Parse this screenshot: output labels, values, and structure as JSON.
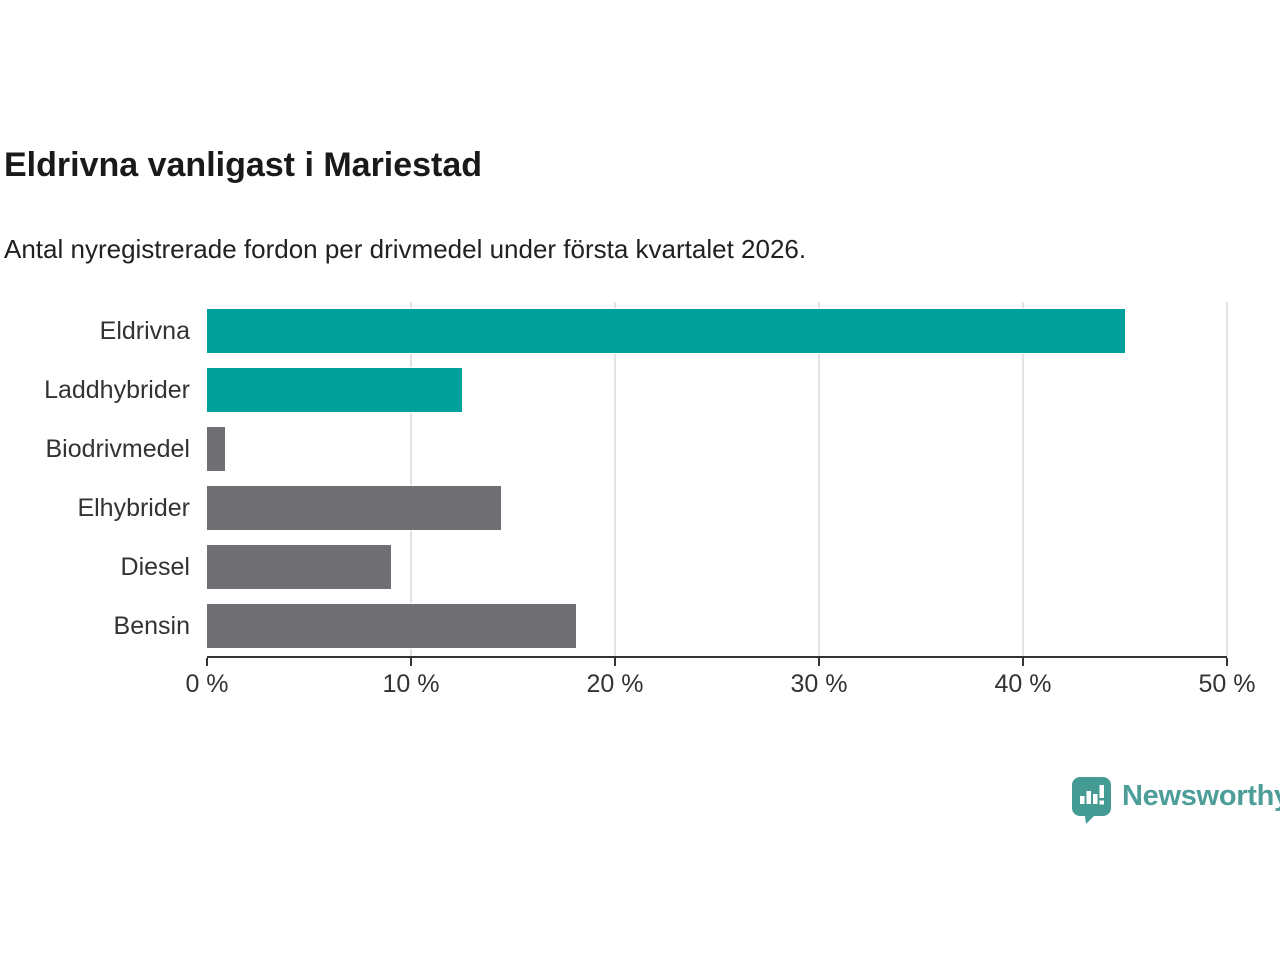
{
  "header": {
    "title": "Eldrivna vanligast i Mariestad",
    "subtitle": "Antal nyregistrerade fordon per drivmedel under första kvartalet 2026."
  },
  "chart_data": {
    "type": "bar",
    "orientation": "horizontal",
    "title": "Eldrivna vanligast i Mariestad",
    "subtitle": "Antal nyregistrerade fordon per drivmedel under första kvartalet 2026.",
    "categories": [
      "Eldrivna",
      "Laddhybrider",
      "Biodrivmedel",
      "Elhybrider",
      "Diesel",
      "Bensin"
    ],
    "values": [
      45.0,
      12.5,
      0.9,
      14.4,
      9.0,
      18.1
    ],
    "unit": "%",
    "bar_colors": [
      "#00A09B",
      "#00A09B",
      "#6F6E73",
      "#6F6E73",
      "#6F6E73",
      "#6F6E73"
    ],
    "xlabel": "",
    "ylabel": "",
    "xlim": [
      0,
      50
    ],
    "x_ticks": [
      0,
      10,
      20,
      30,
      40,
      50
    ],
    "x_tick_labels": [
      "0 %",
      "10 %",
      "20 %",
      "30 %",
      "40 %",
      "50 %"
    ],
    "grid": "vertical-gridlines-on",
    "legend": "none"
  },
  "colors": {
    "accent_teal": "#00A09B",
    "bar_gray": "#6F6E73",
    "gridline": "#e3e3e3",
    "axis": "#333333",
    "logo_teal": "#4D9E98"
  },
  "branding": {
    "logo_text": "Newsworthy",
    "logo_icon": "newsworthy-bar-chart-speech-bubble-icon"
  }
}
